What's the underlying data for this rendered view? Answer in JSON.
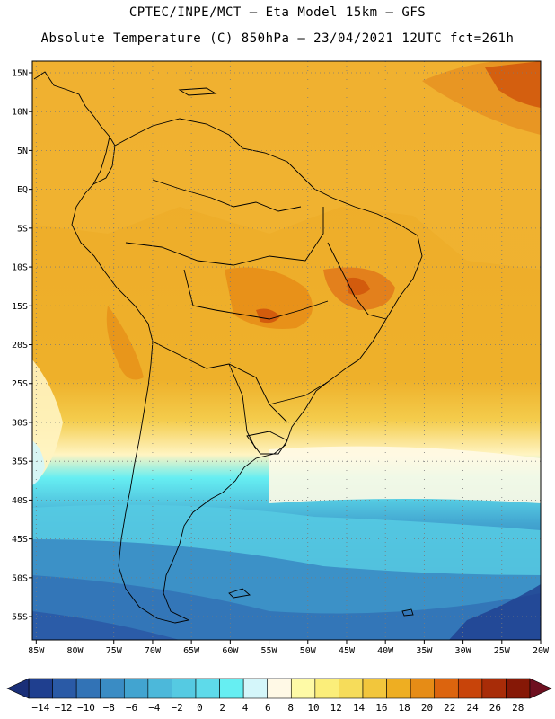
{
  "header": {
    "line1": "CPTEC/INPE/MCT –  Eta Model 15km – GFS",
    "line2": "Absolute Temperature (C) 850hPa – 23/04/2021 12UTC fct=261h"
  },
  "map": {
    "lat_labels": [
      "15N",
      "10N",
      "5N",
      "EQ",
      "5S",
      "10S",
      "15S",
      "20S",
      "25S",
      "30S",
      "35S",
      "40S",
      "45S",
      "50S",
      "55S"
    ],
    "lat_values": [
      15,
      10,
      5,
      0,
      -5,
      -10,
      -15,
      -20,
      -25,
      -30,
      -35,
      -40,
      -45,
      -50,
      -55
    ],
    "lon_labels": [
      "85W",
      "80W",
      "75W",
      "70W",
      "65W",
      "60W",
      "55W",
      "50W",
      "45W",
      "40W",
      "35W",
      "30W",
      "25W",
      "20W"
    ],
    "lon_values": [
      -85,
      -80,
      -75,
      -70,
      -65,
      -60,
      -55,
      -50,
      -45,
      -40,
      -35,
      -30,
      -25,
      -20
    ],
    "extent": {
      "lon_min": -85.5,
      "lon_max": -20,
      "lat_min": -58,
      "lat_max": 16.5
    },
    "grid": "dotted"
  },
  "colorbar": {
    "labels": [
      "-14",
      "-12",
      "-10",
      "-8",
      "-6",
      "-4",
      "-2",
      "0",
      "2",
      "4",
      "6",
      "8",
      "10",
      "12",
      "14",
      "16",
      "18",
      "20",
      "22",
      "24",
      "26",
      "28"
    ],
    "colors": [
      "#1f3f8f",
      "#2a5aa6",
      "#3273b6",
      "#3a8cc4",
      "#42a4d0",
      "#4cb8da",
      "#55cae2",
      "#5edaea",
      "#66eef2",
      "#d4f6fa",
      "#fff9e6",
      "#fefaa6",
      "#fbee7a",
      "#f6dc5a",
      "#f2c63c",
      "#eeae22",
      "#e68c16",
      "#dc640e",
      "#c8440a",
      "#a82c08",
      "#861806"
    ]
  }
}
